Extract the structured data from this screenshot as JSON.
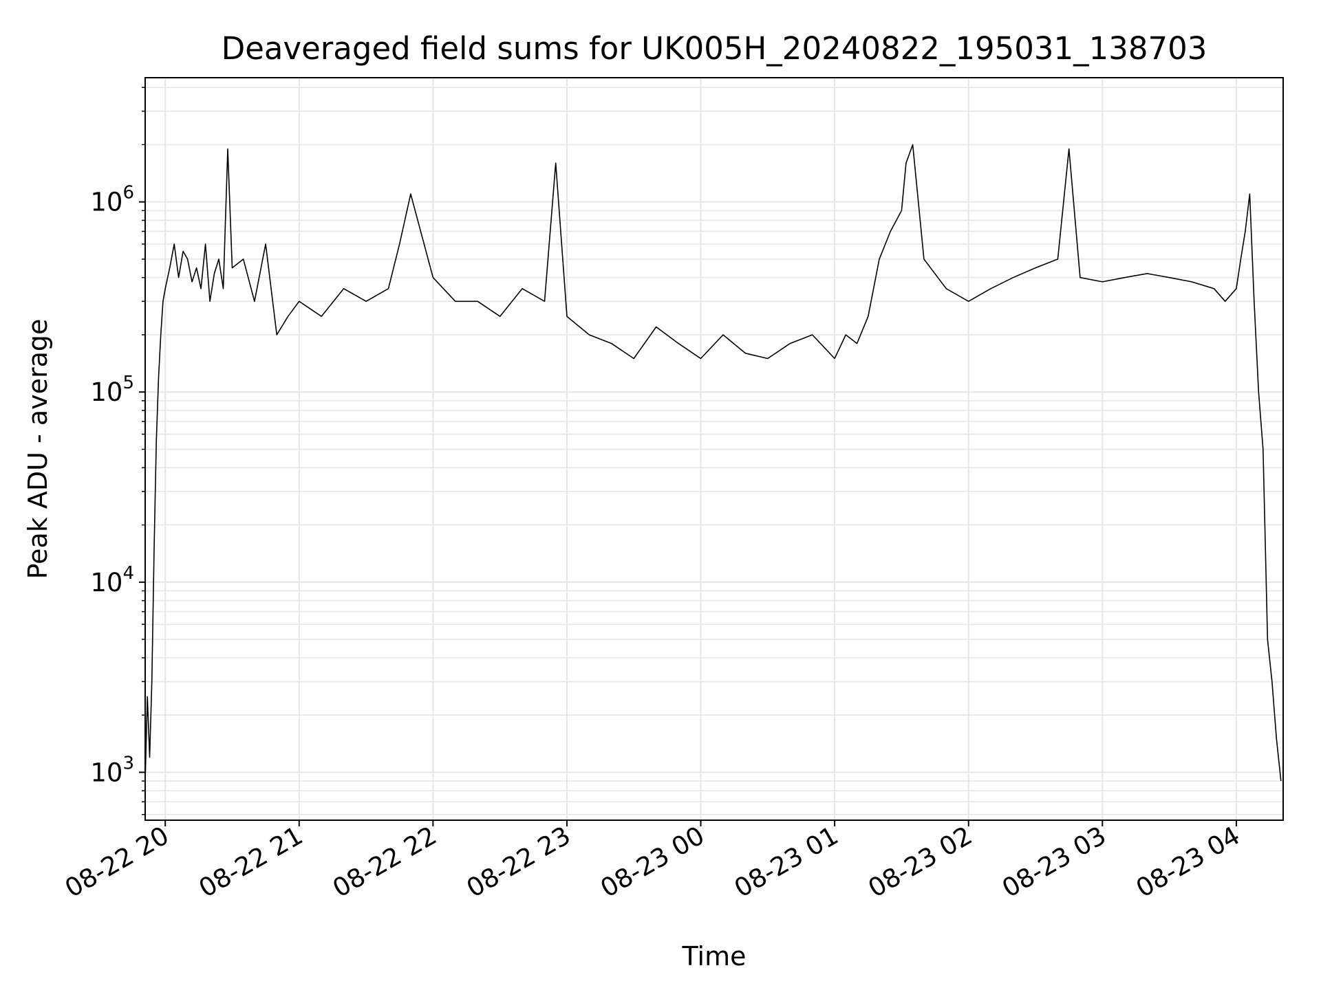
{
  "chart_data": {
    "type": "line",
    "title": "Deaveraged field sums for UK005H_20240822_195031_138703",
    "xlabel": "Time",
    "ylabel": "Peak ADU - average",
    "yscale": "log",
    "ylim": [
      560,
      4500000
    ],
    "xlim": [
      "2024-08-22 19:51",
      "2024-08-23 04:21"
    ],
    "grid": true,
    "line_color": "#000000",
    "grid_color": "#e6e6e6",
    "x_ticks": [
      {
        "value": "2024-08-22 20:00",
        "label": "08-22 20"
      },
      {
        "value": "2024-08-22 21:00",
        "label": "08-22 21"
      },
      {
        "value": "2024-08-22 22:00",
        "label": "08-22 22"
      },
      {
        "value": "2024-08-22 23:00",
        "label": "08-22 23"
      },
      {
        "value": "2024-08-23 00:00",
        "label": "08-23 00"
      },
      {
        "value": "2024-08-23 01:00",
        "label": "08-23 01"
      },
      {
        "value": "2024-08-23 02:00",
        "label": "08-23 02"
      },
      {
        "value": "2024-08-23 03:00",
        "label": "08-23 03"
      },
      {
        "value": "2024-08-23 04:00",
        "label": "08-23 04"
      }
    ],
    "y_ticks": [
      {
        "value": 1000,
        "base": "10",
        "exp": "3"
      },
      {
        "value": 10000,
        "base": "10",
        "exp": "4"
      },
      {
        "value": 100000,
        "base": "10",
        "exp": "5"
      },
      {
        "value": 1000000,
        "base": "10",
        "exp": "6"
      }
    ],
    "series": [
      {
        "x": [
          "2024-08-22 19:51",
          "2024-08-22 19:52",
          "2024-08-22 19:53",
          "2024-08-22 19:54",
          "2024-08-22 19:55",
          "2024-08-22 19:56",
          "2024-08-22 19:57",
          "2024-08-22 19:58",
          "2024-08-22 19:59",
          "2024-08-22 20:00",
          "2024-08-22 20:02",
          "2024-08-22 20:04",
          "2024-08-22 20:06",
          "2024-08-22 20:08",
          "2024-08-22 20:10",
          "2024-08-22 20:12",
          "2024-08-22 20:14",
          "2024-08-22 20:16",
          "2024-08-22 20:18",
          "2024-08-22 20:20",
          "2024-08-22 20:22",
          "2024-08-22 20:24",
          "2024-08-22 20:26",
          "2024-08-22 20:28",
          "2024-08-22 20:30",
          "2024-08-22 20:35",
          "2024-08-22 20:40",
          "2024-08-22 20:45",
          "2024-08-22 20:50",
          "2024-08-22 20:55",
          "2024-08-22 21:00",
          "2024-08-22 21:10",
          "2024-08-22 21:20",
          "2024-08-22 21:30",
          "2024-08-22 21:40",
          "2024-08-22 21:45",
          "2024-08-22 21:50",
          "2024-08-22 22:00",
          "2024-08-22 22:10",
          "2024-08-22 22:20",
          "2024-08-22 22:30",
          "2024-08-22 22:40",
          "2024-08-22 22:50",
          "2024-08-22 22:55",
          "2024-08-22 23:00",
          "2024-08-22 23:10",
          "2024-08-22 23:20",
          "2024-08-22 23:30",
          "2024-08-22 23:40",
          "2024-08-22 23:50",
          "2024-08-23 00:00",
          "2024-08-23 00:10",
          "2024-08-23 00:20",
          "2024-08-23 00:30",
          "2024-08-23 00:40",
          "2024-08-23 00:50",
          "2024-08-23 01:00",
          "2024-08-23 01:05",
          "2024-08-23 01:10",
          "2024-08-23 01:15",
          "2024-08-23 01:20",
          "2024-08-23 01:25",
          "2024-08-23 01:30",
          "2024-08-23 01:32",
          "2024-08-23 01:35",
          "2024-08-23 01:40",
          "2024-08-23 01:50",
          "2024-08-23 02:00",
          "2024-08-23 02:10",
          "2024-08-23 02:20",
          "2024-08-23 02:30",
          "2024-08-23 02:40",
          "2024-08-23 02:45",
          "2024-08-23 02:50",
          "2024-08-23 03:00",
          "2024-08-23 03:10",
          "2024-08-23 03:20",
          "2024-08-23 03:30",
          "2024-08-23 03:40",
          "2024-08-23 03:50",
          "2024-08-23 03:55",
          "2024-08-23 04:00",
          "2024-08-23 04:02",
          "2024-08-23 04:04",
          "2024-08-23 04:06",
          "2024-08-23 04:08",
          "2024-08-23 04:10",
          "2024-08-23 04:12",
          "2024-08-23 04:14",
          "2024-08-23 04:16",
          "2024-08-23 04:18",
          "2024-08-23 04:20"
        ],
        "y": [
          900,
          2500,
          1200,
          3000,
          15000,
          55000,
          120000,
          200000,
          300000,
          350000,
          450000,
          600000,
          400000,
          550000,
          500000,
          380000,
          450000,
          350000,
          600000,
          300000,
          420000,
          500000,
          350000,
          1900000,
          450000,
          500000,
          300000,
          600000,
          200000,
          250000,
          300000,
          250000,
          350000,
          300000,
          350000,
          600000,
          1100000,
          400000,
          300000,
          300000,
          250000,
          350000,
          300000,
          1600000,
          250000,
          200000,
          180000,
          150000,
          220000,
          180000,
          150000,
          200000,
          160000,
          150000,
          180000,
          200000,
          150000,
          200000,
          180000,
          250000,
          500000,
          700000,
          900000,
          1600000,
          2000000,
          500000,
          350000,
          300000,
          350000,
          400000,
          450000,
          500000,
          1900000,
          400000,
          380000,
          400000,
          420000,
          400000,
          380000,
          350000,
          300000,
          350000,
          500000,
          700000,
          1100000,
          300000,
          100000,
          50000,
          5000,
          3000,
          1500,
          900
        ]
      }
    ]
  }
}
